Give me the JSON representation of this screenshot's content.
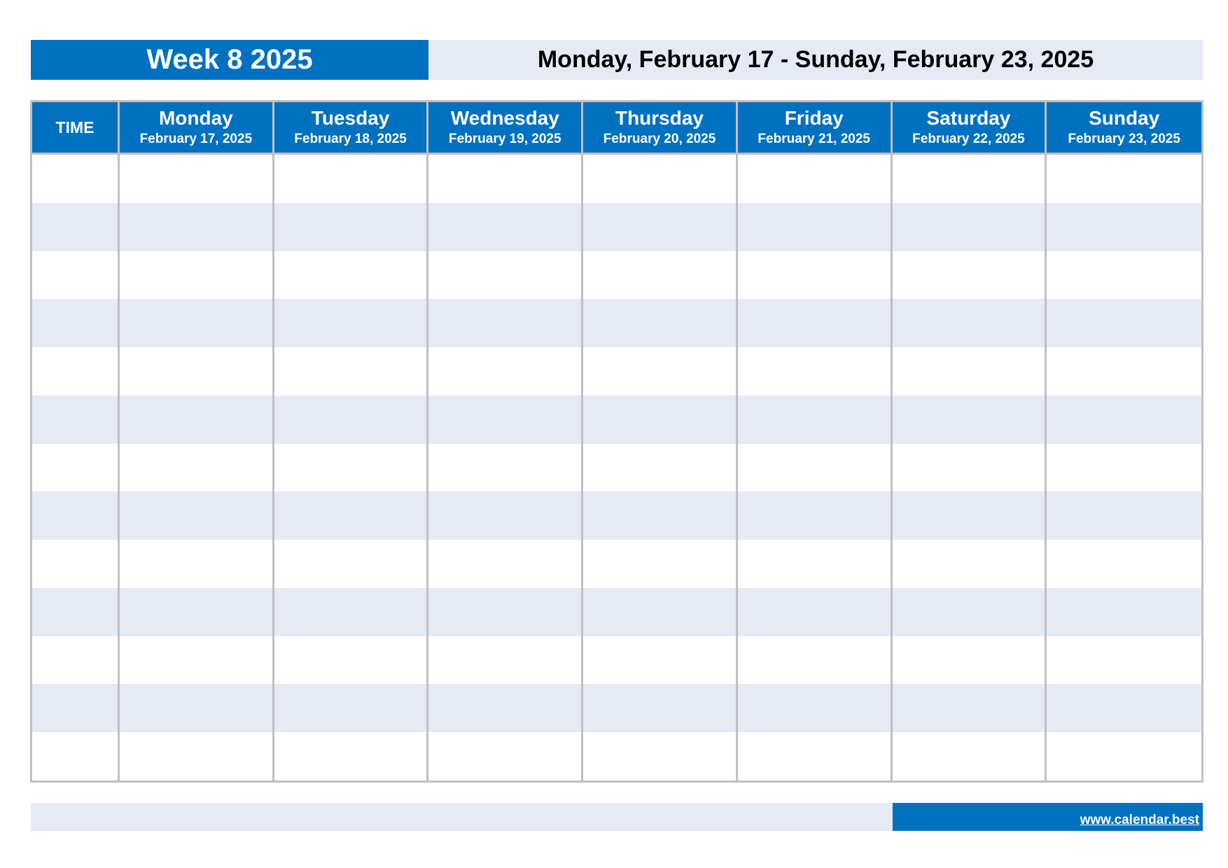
{
  "header": {
    "week_title": "Week 8 2025",
    "date_range": "Monday, February 17 - Sunday, February 23, 2025"
  },
  "table": {
    "time_label": "TIME",
    "days": [
      {
        "name": "Monday",
        "date": "February 17, 2025"
      },
      {
        "name": "Tuesday",
        "date": "February 18, 2025"
      },
      {
        "name": "Wednesday",
        "date": "February 19, 2025"
      },
      {
        "name": "Thursday",
        "date": "February 20, 2025"
      },
      {
        "name": "Friday",
        "date": "February 21, 2025"
      },
      {
        "name": "Saturday",
        "date": "February 22, 2025"
      },
      {
        "name": "Sunday",
        "date": "February 23, 2025"
      }
    ],
    "row_count": 13
  },
  "footer": {
    "link_text": "www.calendar.best"
  },
  "colors": {
    "accent": "#0070c0",
    "stripe": "#e6eaf5",
    "grid": "#c0c0c0"
  }
}
